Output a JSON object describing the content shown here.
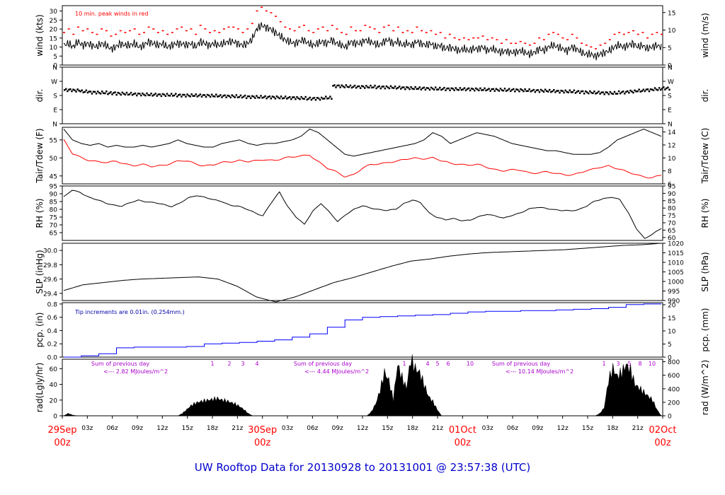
{
  "title": "UW Rooftop Data for 20130928  to  20131001 @ 23:57:38  (UTC)",
  "colors": {
    "primary": "#000000",
    "peak": "#ff0000",
    "pcp": "#0000ff",
    "date": "#ff0000",
    "note": "#0000aa",
    "rad_note": "#aa00cc",
    "title": "#0000cc"
  },
  "chart_data": [
    {
      "id": "wind",
      "type": "line",
      "ylabel_left": "wind (kts)",
      "ylabel_right": "wind (m/s)",
      "left_ticks": [
        "0",
        "5",
        "10",
        "15",
        "20",
        "25",
        "30"
      ],
      "right_ticks": [
        "0",
        "5",
        "10",
        "15"
      ],
      "annotation": "10 min. peak winds in red",
      "series": [
        {
          "name": "wind",
          "color": "#000000",
          "values": [
            11,
            12,
            10,
            13,
            11,
            12,
            11,
            10,
            12,
            11,
            9,
            10,
            12,
            11,
            11,
            12,
            10,
            11,
            13,
            12,
            11,
            12,
            10,
            11,
            12,
            12,
            11,
            12,
            10,
            13,
            12,
            11,
            12,
            11,
            12,
            13,
            13,
            12,
            11,
            12,
            14,
            20,
            22,
            21,
            20,
            18,
            16,
            14,
            13,
            12,
            13,
            14,
            12,
            11,
            12,
            13,
            12,
            14,
            12,
            11,
            10,
            13,
            12,
            12,
            14,
            13,
            12,
            11,
            13,
            14,
            12,
            13,
            11,
            12,
            11,
            13,
            12,
            11,
            12,
            10,
            11,
            9,
            10,
            9,
            8,
            9,
            8,
            9,
            9,
            10,
            8,
            9,
            8,
            7,
            8,
            7,
            7,
            8,
            7,
            6,
            7,
            9,
            8,
            10,
            11,
            10,
            9,
            8,
            10,
            9,
            7,
            6,
            6,
            5,
            6,
            7,
            8,
            10,
            11,
            10,
            11,
            12,
            10,
            11,
            9,
            10,
            11,
            10
          ]
        },
        {
          "name": "10 min. peak winds",
          "color": "#ff0000",
          "values": [
            18,
            20,
            17,
            21,
            19,
            20,
            18,
            17,
            20,
            19,
            16,
            17,
            19,
            18,
            19,
            20,
            17,
            18,
            21,
            20,
            18,
            19,
            17,
            18,
            20,
            21,
            19,
            20,
            17,
            22,
            20,
            18,
            19,
            18,
            20,
            21,
            21,
            20,
            18,
            20,
            23,
            30,
            32,
            30,
            29,
            27,
            24,
            21,
            20,
            19,
            21,
            22,
            19,
            18,
            20,
            21,
            19,
            22,
            20,
            18,
            17,
            21,
            19,
            19,
            22,
            21,
            20,
            18,
            21,
            22,
            19,
            21,
            18,
            19,
            18,
            21,
            19,
            18,
            19,
            17,
            18,
            15,
            17,
            15,
            14,
            15,
            14,
            15,
            15,
            16,
            14,
            15,
            14,
            12,
            14,
            12,
            12,
            13,
            12,
            11,
            12,
            15,
            14,
            17,
            18,
            17,
            15,
            14,
            17,
            15,
            12,
            11,
            10,
            9,
            11,
            12,
            14,
            17,
            18,
            17,
            18,
            19,
            17,
            18,
            15,
            17,
            18,
            17
          ]
        }
      ]
    },
    {
      "id": "dir",
      "type": "scatter",
      "ylabel_left": "dir.",
      "ylabel_right": "dir.",
      "left_ticks": [
        "N",
        "E",
        "S",
        "W",
        "N"
      ],
      "right_ticks": [
        "N",
        "E",
        "S",
        "W",
        "N"
      ],
      "series": [
        {
          "name": "direction",
          "color": "#000000",
          "values": [
            215,
            212,
            205,
            200,
            198,
            195,
            192,
            190,
            188,
            186,
            185,
            184,
            183,
            181,
            180,
            180,
            179,
            178,
            176,
            175,
            173,
            171,
            170,
            169,
            168,
            166,
            165,
            163,
            160,
            160,
            165,
            240,
            238,
            236,
            235,
            235,
            233,
            232,
            230,
            228,
            226,
            225,
            224,
            222,
            221,
            220,
            220,
            219,
            218,
            217,
            216,
            215,
            214,
            212,
            210,
            210,
            208,
            206,
            205,
            203,
            200,
            198,
            196,
            195,
            200,
            205,
            210,
            215,
            220,
            225
          ]
        }
      ]
    },
    {
      "id": "temp",
      "type": "line",
      "ylabel_left": "Tair/Tdew (F)",
      "ylabel_right": "Tair/Tdew (C)",
      "left_ticks": [
        "45",
        "50",
        "55"
      ],
      "right_ticks": [
        "6",
        "8",
        "10",
        "12",
        "14"
      ],
      "series": [
        {
          "name": "Tair",
          "color": "#000000",
          "values": [
            58,
            55,
            54,
            53.5,
            54,
            53,
            53.5,
            53,
            53,
            53.5,
            53,
            53.5,
            54,
            55,
            54,
            53.5,
            53,
            53,
            54,
            54.5,
            55,
            54,
            53.5,
            54,
            54,
            54.5,
            55,
            56,
            58,
            57,
            55,
            53,
            51,
            50.5,
            51,
            51.5,
            52,
            52.5,
            53,
            53.5,
            54,
            55,
            57,
            56,
            54,
            55,
            56,
            57,
            56.5,
            56,
            55,
            54,
            53.5,
            53,
            52.5,
            52,
            52,
            51.5,
            51,
            51,
            51,
            51.5,
            53,
            55,
            56,
            57,
            58,
            57,
            56
          ]
        },
        {
          "name": "Tdew",
          "color": "#ff0000",
          "values": [
            55,
            51,
            50,
            49.5,
            49,
            48.5,
            49,
            48.5,
            48,
            48,
            47.5,
            48,
            48.5,
            49,
            49,
            48.5,
            48,
            48,
            48.5,
            49,
            49.5,
            49,
            49,
            49.5,
            49.5,
            50,
            50,
            50.5,
            51,
            49,
            47,
            46,
            45,
            45.5,
            47,
            48,
            48.5,
            49,
            49,
            49.5,
            50,
            50,
            50,
            49,
            48.5,
            48.5,
            48,
            48,
            47.5,
            47,
            46.5,
            46.5,
            46.5,
            46,
            46,
            46,
            45.5,
            45.5,
            45.5,
            46,
            46.5,
            47.5,
            48,
            47,
            46,
            45.5,
            45,
            44.5,
            45
          ]
        }
      ]
    },
    {
      "id": "rh",
      "type": "line",
      "ylabel_left": "RH (%)",
      "ylabel_right": "RH (%)",
      "left_ticks": [
        "65",
        "70",
        "75",
        "80",
        "85",
        "90",
        "95"
      ],
      "right_ticks": [
        "60",
        "65",
        "70",
        "75",
        "80",
        "85",
        "90",
        "95"
      ],
      "series": [
        {
          "name": "RH",
          "color": "#000000",
          "values": [
            88,
            92,
            91,
            88,
            86,
            84,
            83,
            82,
            84,
            86,
            85,
            84,
            83,
            82,
            84,
            87,
            89,
            88,
            86,
            85,
            83,
            82,
            80,
            78,
            76,
            84,
            91,
            82,
            75,
            70,
            79,
            84,
            78,
            72,
            77,
            80,
            82,
            81,
            80,
            79,
            80,
            84,
            86,
            84,
            78,
            75,
            73,
            74,
            73,
            73,
            75,
            77,
            76,
            74,
            76,
            78,
            80,
            81,
            81,
            80,
            79,
            79,
            80,
            82,
            85,
            87,
            88,
            86,
            78,
            68,
            61,
            64,
            68
          ]
        }
      ]
    },
    {
      "id": "slp",
      "type": "line",
      "ylabel_left": "SLP (inHg)",
      "ylabel_right": "SLP (hPa)",
      "left_ticks": [
        "29.4",
        "29.6",
        "29.8",
        "30.0"
      ],
      "right_ticks": [
        "990",
        "995",
        "1000",
        "1005",
        "1010",
        "1015",
        "1020"
      ],
      "series": [
        {
          "name": "SLP",
          "color": "#000000",
          "values": [
            29.44,
            29.52,
            29.55,
            29.58,
            29.6,
            29.61,
            29.62,
            29.63,
            29.6,
            29.5,
            29.35,
            29.28,
            29.35,
            29.45,
            29.55,
            29.62,
            29.7,
            29.78,
            29.85,
            29.88,
            29.92,
            29.95,
            29.97,
            29.98,
            29.99,
            30.0,
            30.01,
            30.03,
            30.05,
            30.07,
            30.08,
            30.1
          ]
        }
      ]
    },
    {
      "id": "pcp",
      "type": "line",
      "ylabel_left": "pcp. (in)",
      "ylabel_right": "pcp. (mm)",
      "left_ticks": [
        "0.0",
        "0.2",
        "0.4",
        "0.6",
        "0.8"
      ],
      "right_ticks": [
        "0",
        "5",
        "10",
        "15",
        "20"
      ],
      "annotation": "Tip increments are 0.01in. (0.254mm.)",
      "series": [
        {
          "name": "pcp",
          "color": "#0000ff",
          "values": [
            0,
            0.02,
            0.05,
            0.14,
            0.15,
            0.15,
            0.15,
            0.16,
            0.2,
            0.21,
            0.22,
            0.24,
            0.26,
            0.3,
            0.35,
            0.45,
            0.56,
            0.6,
            0.61,
            0.62,
            0.63,
            0.64,
            0.66,
            0.68,
            0.69,
            0.69,
            0.7,
            0.7,
            0.71,
            0.72,
            0.73,
            0.75,
            0.79,
            0.8,
            0.8
          ]
        }
      ]
    },
    {
      "id": "rad",
      "type": "area",
      "ylabel_left": "rad(Lgly/hr)",
      "ylabel_right": "rad (W/m^2)",
      "left_ticks": [
        "0",
        "20",
        "40",
        "60"
      ],
      "right_ticks": [
        "0",
        "200",
        "400",
        "600",
        "800"
      ],
      "notes": [
        {
          "line1": "Sum of previous day",
          "line2": "<--- 2.82 MJoules/m^2"
        },
        {
          "line1": "Sum of previous day",
          "line2": "<--- 4.44 MJoules/m^2"
        },
        {
          "line1": "Sum of previous day",
          "line2": "<--- 10.14 MJoules/m^2"
        }
      ],
      "hour_marks": [
        "1",
        "2",
        "3",
        "4",
        "1",
        "4",
        "5",
        "6",
        "10",
        "1",
        "3",
        "5",
        "8",
        "10"
      ],
      "series": [
        {
          "name": "radiation",
          "color": "#000000",
          "values": [
            0,
            3,
            1,
            0,
            0,
            0,
            0,
            0,
            0,
            0,
            0,
            0,
            0,
            0,
            0,
            0,
            0,
            0,
            0,
            0,
            0,
            0,
            0,
            0,
            0,
            0,
            0,
            3,
            8,
            13,
            16,
            18,
            19,
            20,
            21,
            22,
            20,
            19,
            17,
            15,
            12,
            8,
            3,
            0,
            0,
            0,
            0,
            0,
            0,
            0,
            0,
            0,
            0,
            0,
            0,
            0,
            0,
            0,
            0,
            0,
            0,
            0,
            0,
            0,
            0,
            0,
            0,
            0,
            0,
            0,
            5,
            15,
            32,
            55,
            45,
            20,
            65,
            48,
            35,
            72,
            60,
            55,
            40,
            25,
            18,
            8,
            0,
            0,
            0,
            0,
            0,
            0,
            0,
            0,
            0,
            0,
            0,
            0,
            0,
            0,
            0,
            0,
            0,
            0,
            0,
            0,
            0,
            0,
            0,
            0,
            0,
            0,
            0,
            0,
            0,
            0,
            0,
            0,
            0,
            0,
            0,
            0,
            3,
            10,
            45,
            60,
            50,
            55,
            65,
            58,
            40,
            35,
            30,
            25,
            20,
            8,
            0
          ]
        }
      ]
    }
  ],
  "x_axis": {
    "hour_labels": [
      "03z",
      "06z",
      "09z",
      "12z",
      "15z",
      "18z",
      "21z",
      "03z",
      "06z",
      "09z",
      "12z",
      "15z",
      "18z",
      "21z",
      "03z",
      "06z",
      "09z",
      "12z",
      "15z",
      "18z",
      "21z"
    ],
    "dates": [
      {
        "day": "29Sep",
        "hour": "00z"
      },
      {
        "day": "30Sep",
        "hour": "00z"
      },
      {
        "day": "01Oct",
        "hour": "00z"
      },
      {
        "day": "02Oct",
        "hour": "00z"
      }
    ]
  }
}
